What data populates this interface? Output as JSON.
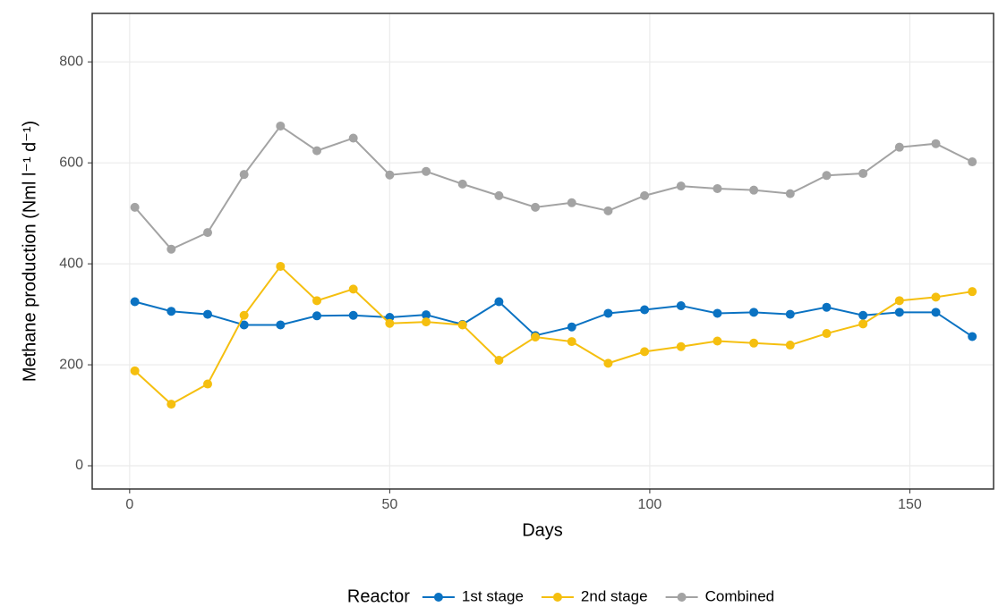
{
  "chart_data": {
    "type": "line",
    "x_label": "Days",
    "y_label": "Methane production (Nml l⁻¹ d⁻¹)",
    "legend_title": "Reactor",
    "legend": "bottom",
    "grid": true,
    "x": [
      1,
      8,
      15,
      22,
      29,
      36,
      43,
      50,
      57,
      64,
      71,
      78,
      85,
      92,
      99,
      106,
      113,
      120,
      127,
      134,
      141,
      148,
      155,
      162
    ],
    "series": [
      {
        "name": "1st stage",
        "color": "#0a72c2",
        "values": [
          325,
          306,
          300,
          279,
          279,
          297,
          298,
          294,
          299,
          280,
          325,
          258,
          275,
          302,
          309,
          317,
          302,
          304,
          300,
          314,
          298,
          304,
          304,
          256
        ]
      },
      {
        "name": "2nd stage",
        "color": "#f5bf0f",
        "values": [
          188,
          122,
          162,
          298,
          395,
          327,
          350,
          282,
          285,
          279,
          209,
          255,
          246,
          203,
          226,
          236,
          247,
          243,
          239,
          262,
          281,
          327,
          334,
          345
        ]
      },
      {
        "name": "Combined",
        "color": "#a3a3a3",
        "values": [
          512,
          429,
          462,
          577,
          673,
          624,
          649,
          576,
          583,
          558,
          535,
          512,
          521,
          505,
          535,
          554,
          549,
          546,
          539,
          575,
          579,
          631,
          638,
          602
        ]
      }
    ],
    "xlim": [
      -7.2,
      166.1
    ],
    "xticks": [
      0,
      50,
      100,
      150
    ],
    "ylim": [
      -46,
      896
    ],
    "yticks": [
      0,
      200,
      400,
      600,
      800
    ]
  }
}
